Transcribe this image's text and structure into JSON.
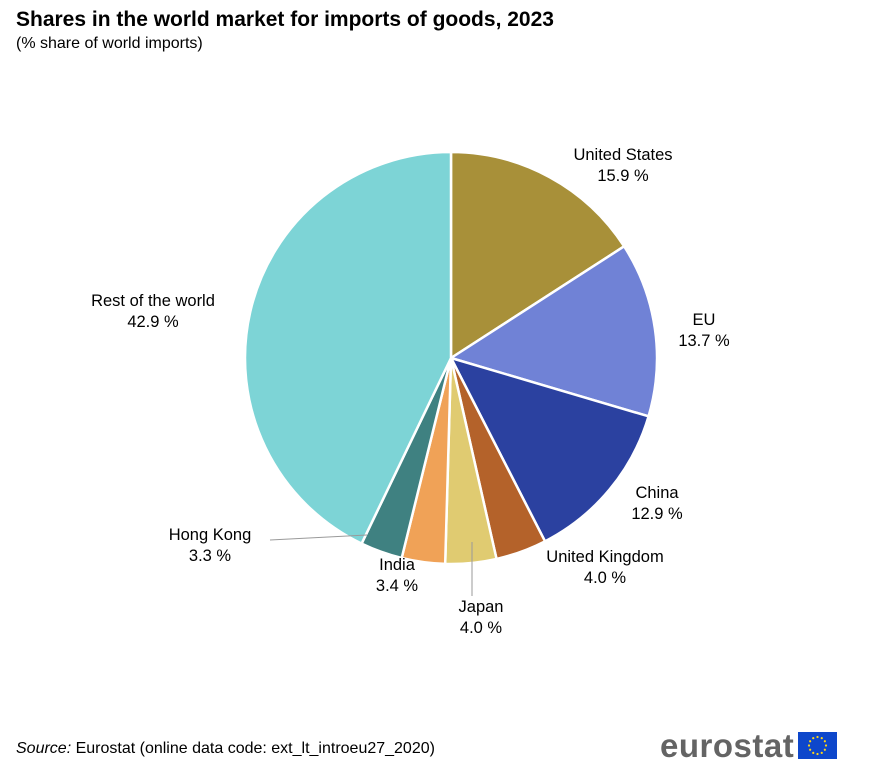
{
  "title": "Shares in the world market for imports of goods, 2023",
  "subtitle": "(% share of world imports)",
  "source": {
    "label": "Source:",
    "text": "Eurostat (online data code: ext_lt_introeu27_2020)"
  },
  "brand": {
    "name": "eurostat",
    "icon": "eu-flag-icon"
  },
  "chart_data": {
    "type": "pie",
    "title": "Shares in the world market for imports of goods, 2023",
    "subtitle": "(% share of world imports)",
    "unit": "%",
    "start": "12 o'clock",
    "direction": "clockwise",
    "slices": [
      {
        "label": "United States",
        "value": 15.9,
        "display": "15.9 %",
        "color": "#a89039"
      },
      {
        "label": "EU",
        "value": 13.7,
        "display": "13.7 %",
        "color": "#7082d6"
      },
      {
        "label": "China",
        "value": 12.9,
        "display": "12.9 %",
        "color": "#2b41a0"
      },
      {
        "label": "United Kingdom",
        "value": 4.0,
        "display": "4.0 %",
        "color": "#b4622a"
      },
      {
        "label": "Japan",
        "value": 4.0,
        "display": "4.0 %",
        "color": "#e0cb71"
      },
      {
        "label": "India",
        "value": 3.4,
        "display": "3.4 %",
        "color": "#f0a257"
      },
      {
        "label": "Hong Kong",
        "value": 3.3,
        "display": "3.3 %",
        "color": "#3f8181"
      },
      {
        "label": "Rest of the world",
        "value": 42.9,
        "display": "42.9 %",
        "color": "#7dd4d6"
      }
    ]
  }
}
